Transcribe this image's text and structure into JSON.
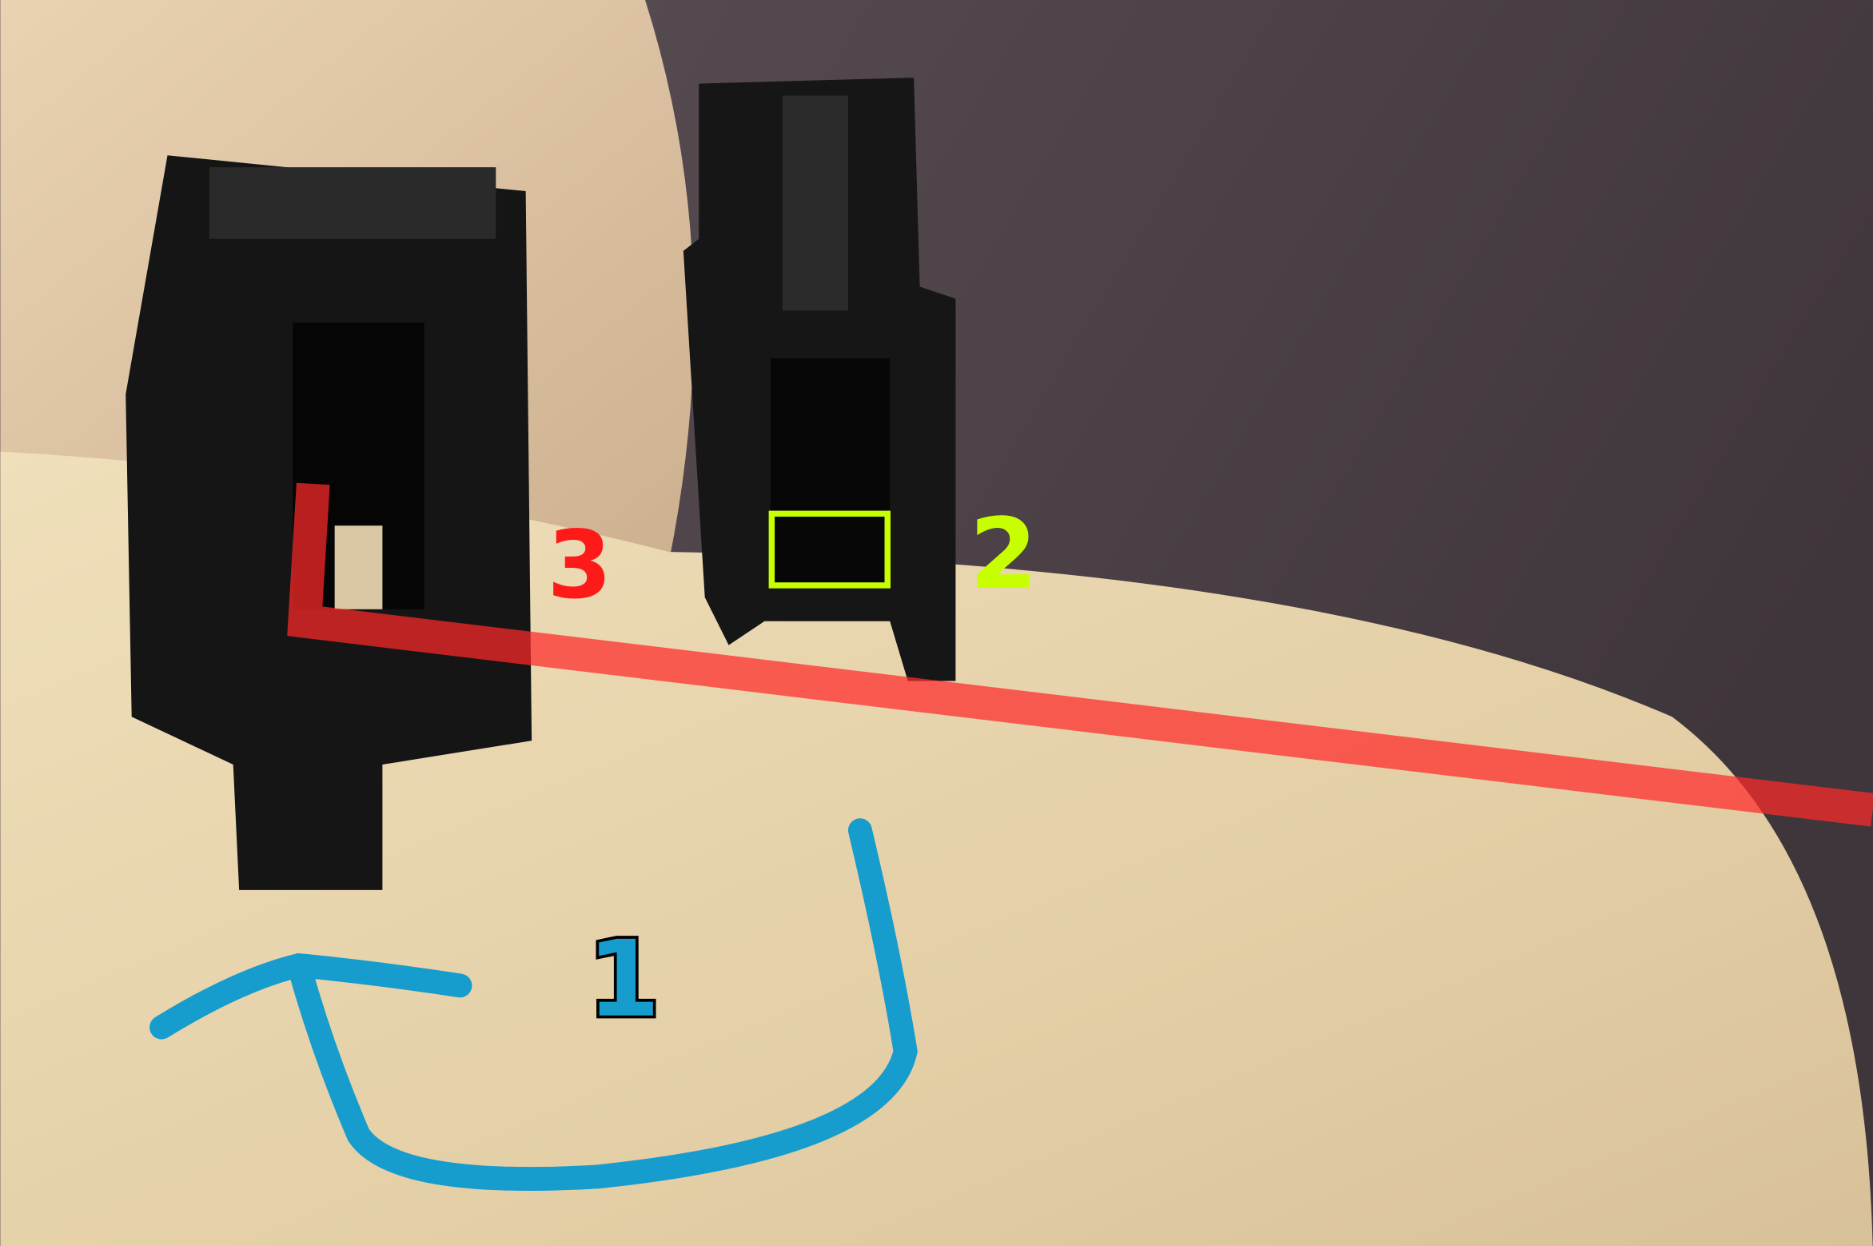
{
  "annotations": [
    {
      "label": "1"
    },
    {
      "label": "2"
    },
    {
      "label": "3"
    }
  ]
}
